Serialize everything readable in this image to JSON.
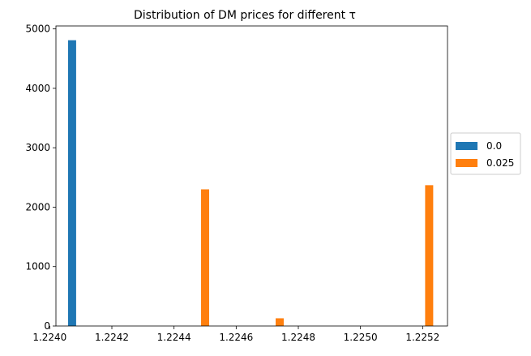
{
  "chart_data": {
    "type": "bar",
    "title": "Distribution of DM prices for different τ",
    "xlabel": "",
    "ylabel": "",
    "xlim": [
      1.22402,
      1.22528
    ],
    "ylim": [
      0,
      5050
    ],
    "bar_width": 2.6e-05,
    "x_ticks": [
      "1.2240",
      "1.2242",
      "1.2244",
      "1.2246",
      "1.2248",
      "1.2250",
      "1.2252"
    ],
    "y_ticks": [
      "0",
      "1000",
      "2000",
      "3000",
      "4000",
      "5000"
    ],
    "grid": false,
    "legend_position": "center-right outside",
    "series": [
      {
        "name": "0.0",
        "color": "#1f77b4",
        "points": [
          {
            "x": 1.224072,
            "y": 4810
          }
        ]
      },
      {
        "name": "0.025",
        "color": "#ff7f0e",
        "points": [
          {
            "x": 1.2245,
            "y": 2300
          },
          {
            "x": 1.22474,
            "y": 130
          },
          {
            "x": 1.225221,
            "y": 2370
          }
        ]
      }
    ]
  }
}
